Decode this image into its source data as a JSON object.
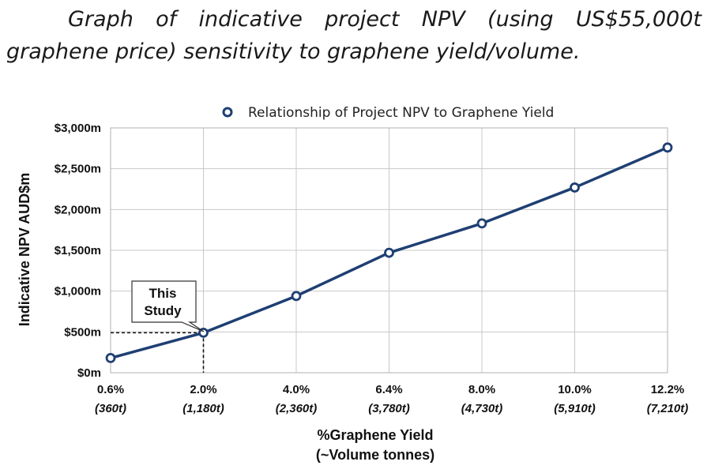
{
  "caption": {
    "line1": "Graph of indicative project NPV (using US$55,000t graphene",
    "line2": "price) sensitivity to graphene yield/volume."
  },
  "chart_data": {
    "type": "line",
    "legend": "Relationship of Project NPV to Graphene Yield",
    "legend_position": "top-center",
    "ylabel": "Indicative NPV AUD$m",
    "xlabel_line1": "%Graphene Yield",
    "xlabel_line2": "(~Volume tonnes)",
    "categories": [
      "0.6%",
      "2.0%",
      "4.0%",
      "6.4%",
      "8.0%",
      "10.0%",
      "12.2%"
    ],
    "category_sublabels": [
      "(360t)",
      "(1,180t)",
      "(2,360t)",
      "(3,780t)",
      "(4,730t)",
      "(5,910t)",
      "(7,210t)"
    ],
    "values": [
      180,
      490,
      940,
      1470,
      1830,
      2270,
      2760
    ],
    "yticks": [
      0,
      500,
      1000,
      1500,
      2000,
      2500,
      3000
    ],
    "ytick_labels": [
      "$0m",
      "$500m",
      "$1,000m",
      "$1,500m",
      "$2,000m",
      "$2,500m",
      "$3,000m"
    ],
    "ylim": [
      0,
      3000
    ],
    "grid": true,
    "line_color": "#1f3f73",
    "annotation": {
      "line1": "This",
      "line2": "Study",
      "category_index": 1
    }
  }
}
